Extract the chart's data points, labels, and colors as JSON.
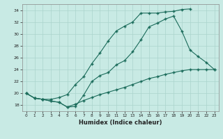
{
  "xlabel": "Humidex (Indice chaleur)",
  "bg_color": "#c8eae4",
  "grid_color": "#aad4cc",
  "line_color": "#1a6b5a",
  "xlim": [
    -0.5,
    23.5
  ],
  "ylim": [
    17.0,
    35.0
  ],
  "yticks": [
    18,
    20,
    22,
    24,
    26,
    28,
    30,
    32,
    34
  ],
  "xticks": [
    0,
    1,
    2,
    3,
    4,
    5,
    6,
    7,
    8,
    9,
    10,
    11,
    12,
    13,
    14,
    15,
    16,
    17,
    18,
    19,
    20,
    21,
    22,
    23
  ],
  "line1_x": [
    0,
    1,
    2,
    3,
    4,
    5,
    6,
    7,
    8,
    9,
    10,
    11,
    12,
    13,
    14,
    15,
    16,
    17,
    18,
    19,
    20
  ],
  "line1_y": [
    20.0,
    19.2,
    19.0,
    19.0,
    19.3,
    19.8,
    21.5,
    22.8,
    25.0,
    26.8,
    28.8,
    30.5,
    31.3,
    32.0,
    33.5,
    33.5,
    33.5,
    33.7,
    33.8,
    34.1,
    34.2
  ],
  "line2_x": [
    0,
    1,
    2,
    3,
    4,
    5,
    6,
    7,
    8,
    9,
    10,
    11,
    12,
    13,
    14,
    15,
    16,
    17,
    18,
    19,
    20,
    21,
    22,
    23
  ],
  "line2_y": [
    20.0,
    19.2,
    19.0,
    18.7,
    18.5,
    17.7,
    17.8,
    19.7,
    22.0,
    23.0,
    23.5,
    24.8,
    25.5,
    27.0,
    29.0,
    31.2,
    31.8,
    32.5,
    33.0,
    30.5,
    27.3,
    26.2,
    25.2,
    24.0
  ],
  "line3_x": [
    0,
    1,
    2,
    3,
    4,
    5,
    6,
    7,
    8,
    9,
    10,
    11,
    12,
    13,
    14,
    15,
    16,
    17,
    18,
    19,
    20,
    21,
    22,
    23
  ],
  "line3_y": [
    20.0,
    19.2,
    19.0,
    18.7,
    18.5,
    17.7,
    18.2,
    18.8,
    19.3,
    19.8,
    20.2,
    20.6,
    21.0,
    21.5,
    22.0,
    22.5,
    22.8,
    23.2,
    23.5,
    23.8,
    24.0,
    24.0,
    24.0,
    24.0
  ]
}
